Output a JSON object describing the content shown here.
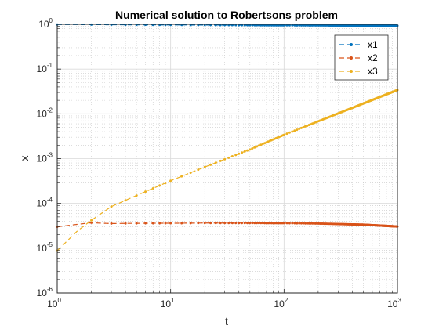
{
  "chart_data": {
    "type": "line",
    "title": "Numerical solution to Robertsons problem",
    "xlabel": "t",
    "ylabel": "x",
    "xscale": "log",
    "yscale": "log",
    "xlim": [
      1,
      1000
    ],
    "ylim": [
      1e-06,
      1
    ],
    "grid": true,
    "minor_grid": true,
    "legend_position": "top-right",
    "x_ticks": [
      {
        "value": 1,
        "base": "10",
        "exp": "0"
      },
      {
        "value": 10,
        "base": "10",
        "exp": "1"
      },
      {
        "value": 100,
        "base": "10",
        "exp": "2"
      },
      {
        "value": 1000,
        "base": "10",
        "exp": "3"
      }
    ],
    "y_ticks": [
      {
        "value": 1e-06,
        "base": "10",
        "exp": "-6"
      },
      {
        "value": 1e-05,
        "base": "10",
        "exp": "-5"
      },
      {
        "value": 0.0001,
        "base": "10",
        "exp": "-4"
      },
      {
        "value": 0.001,
        "base": "10",
        "exp": "-3"
      },
      {
        "value": 0.01,
        "base": "10",
        "exp": "-2"
      },
      {
        "value": 0.1,
        "base": "10",
        "exp": "-1"
      },
      {
        "value": 1,
        "base": "10",
        "exp": "0"
      }
    ],
    "series": [
      {
        "name": "x1",
        "color": "#0072BD",
        "x": [
          1,
          2,
          3,
          5,
          10,
          20,
          50,
          100,
          200,
          500,
          1000
        ],
        "y": [
          0.99,
          0.985,
          0.98,
          0.975,
          0.97,
          0.965,
          0.955,
          0.95,
          0.945,
          0.94,
          0.93
        ]
      },
      {
        "name": "x2",
        "color": "#D95319",
        "x": [
          1,
          1.5,
          2,
          2.5,
          3,
          4,
          5,
          7,
          10,
          20,
          50,
          100,
          200,
          500,
          1000
        ],
        "y": [
          3e-05,
          3.4e-05,
          3.7e-05,
          3.6e-05,
          3.55e-05,
          3.57e-05,
          3.59e-05,
          3.6e-05,
          3.6e-05,
          3.64e-05,
          3.64e-05,
          3.62e-05,
          3.55e-05,
          3.35e-05,
          3.05e-05
        ]
      },
      {
        "name": "x3",
        "color": "#EDB120",
        "x": [
          1,
          1.5,
          2,
          3,
          5,
          10,
          20,
          50,
          100,
          200,
          500,
          1000
        ],
        "y": [
          8.8e-06,
          2.4e-05,
          4.2e-05,
          8.5e-05,
          0.00015,
          0.00032,
          0.00065,
          0.0016,
          0.0034,
          0.0068,
          0.017,
          0.034
        ]
      }
    ]
  }
}
